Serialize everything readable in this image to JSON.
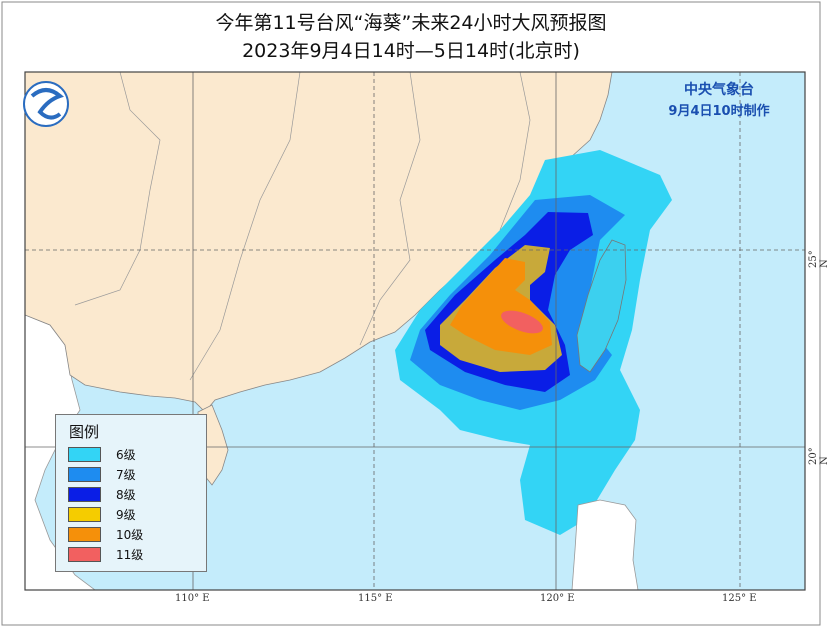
{
  "title": "今年第11号台风“海葵”未来24小时大风预报图",
  "subtitle": "2023年9月4日14时—5日14时(北京时)",
  "agency": {
    "name": "中央气象台",
    "issued": "9月4日10时制作"
  },
  "legend": {
    "title": "图例",
    "items": [
      {
        "label": "6级",
        "color": "#33d4f5"
      },
      {
        "label": "7级",
        "color": "#1e8cf0"
      },
      {
        "label": "8级",
        "color": "#0a1ee6"
      },
      {
        "label": "9级",
        "color": "#f5cc00"
      },
      {
        "label": "10级",
        "color": "#f5900a"
      },
      {
        "label": "11级",
        "color": "#f26060"
      }
    ]
  },
  "axes": {
    "lon_labels": [
      "110° E",
      "115° E",
      "120° E",
      "125° E"
    ],
    "lat_labels": [
      "25° N",
      "20° N"
    ]
  },
  "colors": {
    "land_china": "#fbe9cf",
    "sea": "#c4ecfb",
    "foreign_land": "#ffffff"
  },
  "logo": "cma-logo"
}
